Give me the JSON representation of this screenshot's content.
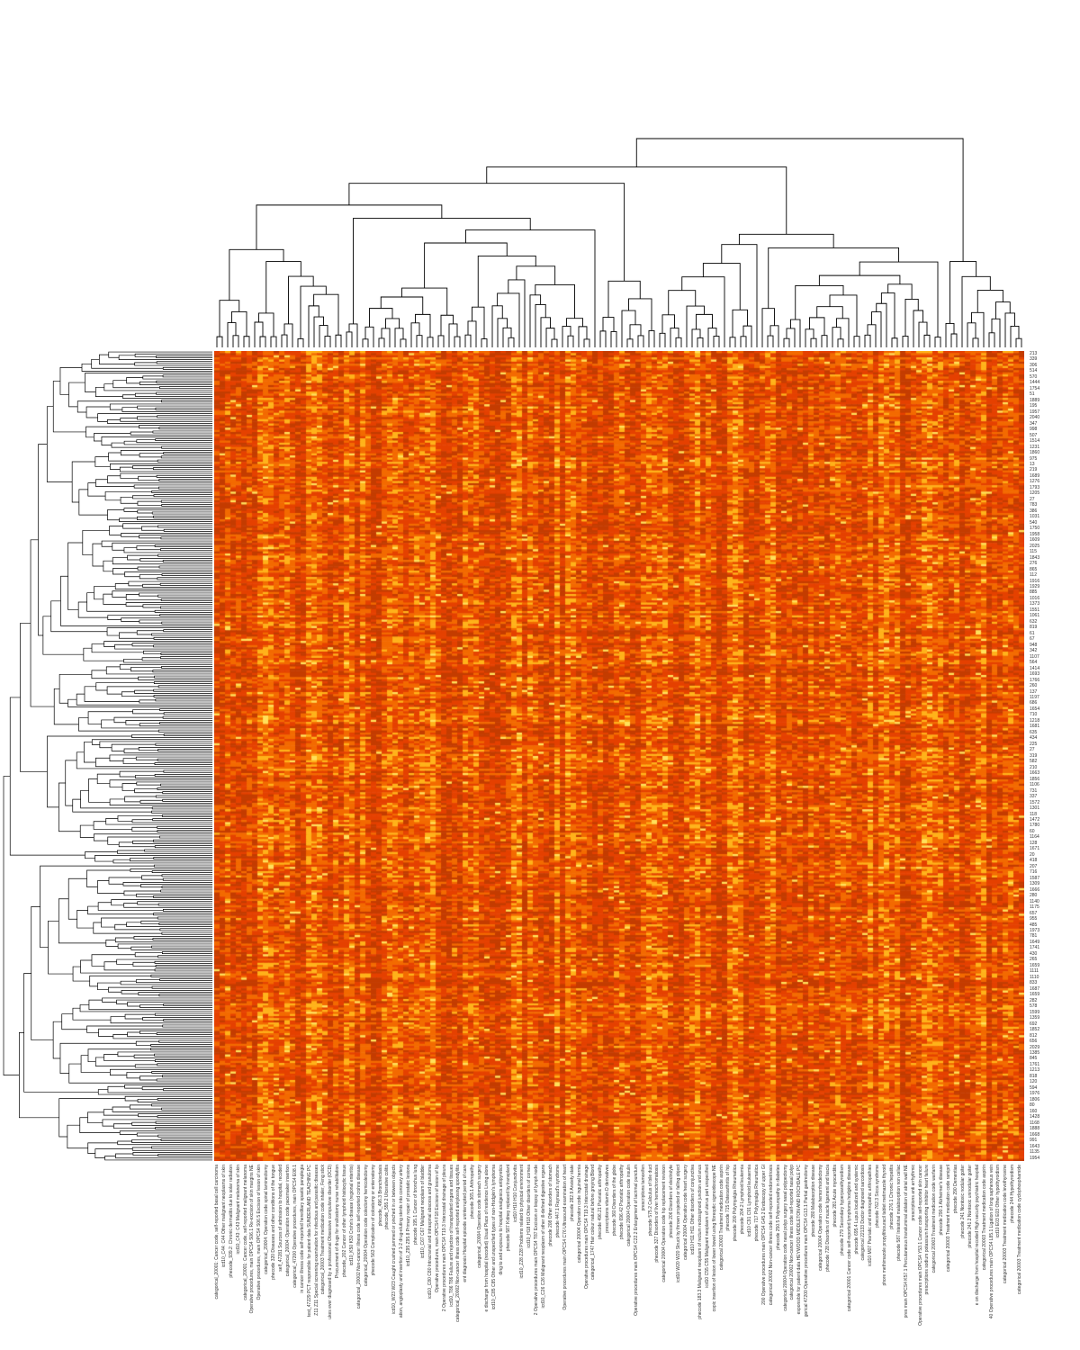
{
  "chart_data": {
    "type": "heatmap",
    "title": "",
    "xlabel": "",
    "ylabel": "",
    "colormap": [
      "#c43c00",
      "#e54100",
      "#f36a00",
      "#ffb21a",
      "#ffe05a"
    ],
    "row_dendrogram": true,
    "col_dendrogram": true,
    "row_labels": [
      "213",
      "339",
      "306",
      "514",
      "570",
      "1444",
      "1754",
      "51",
      "1889",
      "195",
      "1957",
      "2040",
      "347",
      "998",
      "507",
      "1514",
      "1231",
      "1860",
      "975",
      "13",
      "219",
      "1689",
      "1276",
      "1793",
      "1205",
      "27",
      "783",
      "386",
      "1031",
      "540",
      "1750",
      "1958",
      "1609",
      "2025",
      "115",
      "1843",
      "276",
      "865",
      "112",
      "1916",
      "1929",
      "885",
      "1016",
      "1373",
      "1551",
      "1061",
      "632",
      "819",
      "61",
      "67",
      "948",
      "342",
      "1107",
      "564",
      "1414",
      "1693",
      "1766",
      "260",
      "137",
      "1197",
      "686",
      "1654",
      "710",
      "1218",
      "1681",
      "635",
      "434",
      "225",
      "27",
      "319",
      "582",
      "210",
      "1663",
      "1856",
      "1106",
      "731",
      "337",
      "1572",
      "1301",
      "118",
      "1472",
      "1780",
      "60",
      "1164",
      "128",
      "1671",
      "20",
      "418",
      "207",
      "716",
      "1587",
      "1309",
      "1666",
      "280",
      "1140",
      "1175",
      "657",
      "955",
      "485",
      "1973",
      "781",
      "1649",
      "1741",
      "430",
      "265",
      "1659",
      "1111",
      "1110",
      "833",
      "1687",
      "1659",
      "282",
      "578",
      "1599",
      "1359",
      "692",
      "1852",
      "812",
      "656",
      "2029",
      "1385",
      "845",
      "1761",
      "1213",
      "818",
      "120",
      "594",
      "1976",
      "1806",
      "80",
      "160",
      "1428",
      "1168",
      "1888",
      "1668",
      "991",
      "1643",
      "1135",
      "1954"
    ],
    "column_labels": [
      "categorical_20001: Cancer code, self-reported basal cell carcinoma",
      "icd10_C44: C44 Other malignant neoplasms of skin",
      "phecode_939.2: Chronic dermatitis due to solar radiation",
      "icd10_C43: C43 Malignant melanoma of skin",
      "categorical_20001: Cancer code, self-reported malignant melanoma",
      "Operative procedures, main OPCS4 S06.1 Re-excision of skin margins NE",
      "Operative procedures, main OPCS4 S06.5 Excision of lesion of skin",
      "categorical_20004: Operation code spinal laminectomy",
      "phecode 320 Diseases and other conditions of the tongue",
      "self_47281 Sources of admission to hospital, recoded",
      "categorical_20004: Operation code pacemaker insertion",
      "categorical_47200 Operative procedures, main OPCS4 E08.1",
      "in cancer illness code self-reported hereditary spastic paraplegia",
      "test_47229 PCT responsible for patient data SUNDERLAND TEACHING PC",
      "Z11 Z11 Special screening examination for infectious and parasitic diseases",
      "categorical_20003 Treatment medication code inhaler, Feng stick",
      "ukes ever diagnosed by a professional Obsessive compulsive disorder (OCD)",
      "Procurement of drugs for oral/ostomy nurse rehabilitation",
      "phecode_202 Cancer of other lymphoid histiocytic tissue",
      "icd10_K50 K50 Crohn's disease (regional enteritis)",
      "categorical_20002 Non-cancer illness code self-reported crohns disease",
      "categorical_20004 Operation code colectomy hemicolectomy",
      "phecode 563 Complication of colostomy or enterostomy",
      "phecode_496.3 Bronchiectasis",
      "phecode_555.2 Ulcerative colitis",
      "icd10_W23 W23 Caught crushed jammed or pinched in or between objects",
      "ation, angioplasty and insertion of 1-2 drug-eluting stents into coronary artery",
      "icd10_Z95 Z95.8 Primary repair of prostatic lesions",
      "phecode 195.1 Cancer of bronchus lung",
      "icd10_C67 C67 Malignant neoplasm of bladder",
      "icd10_C80 C80 Intracranial and intraspinal abscess and granuloma",
      "Operative procedures, main OPCS4 F18 Excision of lesion of lip",
      "2 Operative procedures main OPCS4 T19.3 Intercostal drainage of pleura",
      "icd10_T86 T86 Failure and rejection of transplanted organs and tissues",
      "categorical_20002 Non-cancer illness code self-reported ankylosing spondylitis",
      "ent diagnosis Hospital episode uninterrupted period of care",
      "phecode 365.1 Arthropathy",
      "categorical_20004 Operation code stomach surgery",
      "e discharge from hospital (recoded) Usual Place of residence Living alone",
      "icd10_C85 C85 Other and unspecified types of non-Hodgkin's lymphoma",
      "ding to and exposure to hospital analgesics antipyretics",
      "phecode 587 Kidney replaced by transplant",
      "icd10 H10 H10 Conjunctivitis",
      "icd10_Z28 Z28 Problems related to physical environment",
      "icd10_H18 H18 Other disorders of cornea",
      "2 Operative procedures main OPCS4 T87 Excision or biopsy of lymph node",
      "icd10_C26 C26 Malignant neoplasm of other ill-defined digestive organs",
      "phecode 208 Other disorders of stomach",
      "phecode 447.1 Raynaud's syndrome",
      "Operative procedures main OPCS4 C76 Ultrasound examination of heart",
      "phecode 282.9 Anxiety state",
      "categorical 20004 Operation code inguinal hernia",
      "Operative procedures main OPCS4 T19.3 Intercostal drainage",
      "categorical_1747 Hair colour natural before greying Blond",
      "phecode 496.21 Psoriatic arthropathy",
      "prescriptions vitamin D derivatives",
      "phecode 360 Disorders of the globe",
      "phecode 696.42 Psoriatic arthropathy",
      "categorical 20004 Operation code insulin",
      "Operative procedures main OPCS4 C22.2 Enlargement of lacrimal punctum",
      "prescriptions tamoxifen",
      "phecode 575.2 Calculus of bile duct",
      "phecode 327 Disorders of liver hemochromatosis",
      "categorical 20004 Operation code hip replacement revision",
      "phecode 206 Disorders of electrolyte",
      "icd10 W20 W20 Struck by thrown projected or falling object",
      "categorical 20004 Operation code heart surgery",
      "icd10 H11 H11 Other disorders of conjunctiva",
      "phecode 183.3 Malignant neoplasm of rectum rectosigmoid junction and anus",
      "icd10 C55 C55 Malignant neoplasm of uterus part unspecified",
      "copic insertion of lesion of lower bowel using fibreoptic sigmoidoscope NE",
      "categorical 20003 Treatment medication code aspirin",
      "phecode 715 Osteoarthritis of hip",
      "phecode 200 Polymyalgia Rheumatica",
      "phecode 204.2 Lymphoid leukemia",
      "icd10 C91 C91 Lymphoid leukaemia",
      "phecode 717 Polymyalgia Rheumatica",
      "200 Operative procedures main OPCS4 G45.2 Endoscopy of upper GI",
      "categorical 20002 Non-cancer illness code self-reported endometriosis",
      "phecode 250.5 Polyneuropathy in diabetes",
      "categorical 20004 Operation code nasal polyp surgery nasal polypectomy",
      "categorical 20002 Non-cancer illness code self-reported nasal polyp",
      "esponsible for patient data HEYWOOD MIDDLETON AND ROCHDALE PC",
      "gorical 47200 Operative procedures main OPCS4 G13.1 Partial gastrectomy",
      "phecode 280 Malabsorption disease",
      "categorical 20004 Operation code hemorrhoidectomy",
      "phecode 728 Disorders of muscle ligament and fascia",
      "phecode 281 Acute myocarditis",
      "phecode 279 Secondary hyperparathyroidism",
      "categorical 20001 Cancer code self-reported lymphoma hodgkins disease",
      "phecode 695.4 Lupus localized and systemic",
      "categorical 22133 Doctor diagnosed sarcoidosis",
      "icd10 M07 Psoriatic and enteropathic arthropathies",
      "phecode 762.3 Sicca syndrome",
      "phore methimazole propylthiouracil tablet metimazole thyroid",
      "phecode 276.1 Chronic hepatitis",
      "phecode 587 Intestinal malabsorption non celiac",
      "pres main OPCS4 K57.1 Percutaneous transluminal ablation of atrial wall NE",
      "prescriptions anti arrhythmic",
      "Operative procedures main OPCS4 Y53.1 Cancer code self-reported skin cancer",
      "prescriptions sodium potassium transporting inhibitor heart failure",
      "categorical 20003 Treatment medication code warfarin",
      "phecode 290.1 Alzheimer's disease",
      "categorical 20003 Treatment medication code ramipril",
      "phecode 290 Dementias",
      "phecode 241 Nontoxic nodular goiter",
      "phecode 241.2 Nontoxic uninodular goiter",
      "e on discharge from hospital recoded High security psychiatric hospital",
      "categorical 20003 Treatment medication code aspirin",
      "40 Operative procedures main OPCS4 L85.1 Ligation of long saphenous vein",
      "icd10 E03 E03 Other hypothyroidism",
      "categorical 20003 Treatment medication code levothyroxine",
      "phecode 244 Hypothyroidism",
      "categorical 20003 Treatment medication code cyclophosphamide"
    ]
  }
}
